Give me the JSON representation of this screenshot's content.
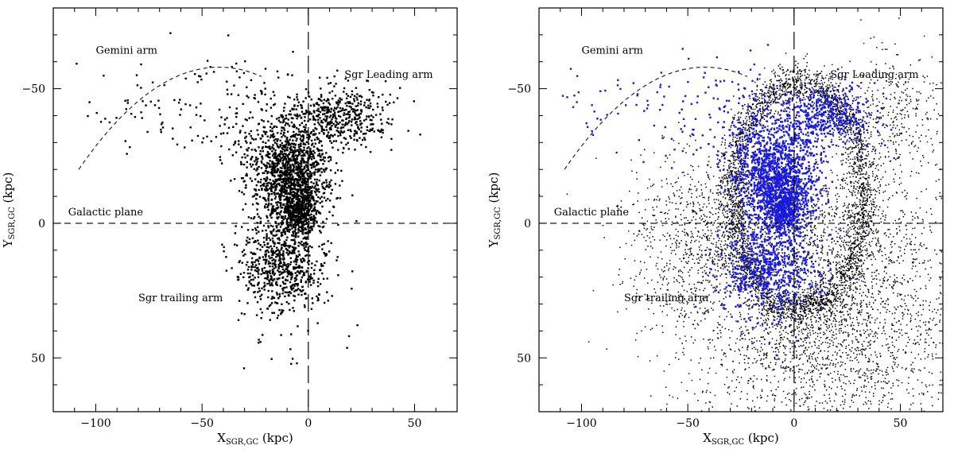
{
  "chart_data": [
    {
      "type": "scatter",
      "xlabel": "X",
      "xlabel_sub": "SGR,GC",
      "xlabel_unit": "(kpc)",
      "ylabel": "Y",
      "ylabel_sub": "SGR,GC",
      "ylabel_unit": "(kpc)",
      "xlim": [
        -120,
        70
      ],
      "ylim": [
        70,
        -80
      ],
      "x_ticks": [
        -100,
        -50,
        0,
        50
      ],
      "x_tick_labels": [
        "−100",
        "−50",
        "0",
        "50"
      ],
      "y_ticks": [
        -50,
        0,
        50
      ],
      "y_tick_labels": [
        "−50",
        "0",
        "50"
      ],
      "colors": {
        "observed": "#000000"
      },
      "reference_lines": {
        "horizontal_y": 0,
        "vertical_x": 0
      },
      "annotations": [
        {
          "text": "Gemini arm",
          "x": -100,
          "y": -63
        },
        {
          "text": "Sgr Leading arm",
          "x": 17,
          "y": -54
        },
        {
          "text": "Galactic plane",
          "x": -113,
          "y": -3
        },
        {
          "text": "Sgr trailing arm",
          "x": -80,
          "y": 29
        }
      ],
      "gemini_arc": {
        "x_from": -108,
        "x_to": -22,
        "vertex_x": -42,
        "vertex_y": -58,
        "y_at_from": -20
      },
      "series": [
        {
          "color": "#000000",
          "clusters": [
            {
              "cx": -8,
              "cy": -17,
              "sx": 9,
              "sy": 10,
              "n": 1400
            },
            {
              "cx": 15,
              "cy": -40,
              "sx": 12,
              "sy": 6,
              "n": 450
            },
            {
              "cx": -4,
              "cy": -4,
              "sx": 4,
              "sy": 4,
              "n": 350
            },
            {
              "cx": -12,
              "cy": 16,
              "sx": 11,
              "sy": 8,
              "n": 650
            },
            {
              "cx": -24,
              "cy": -36,
              "sx": 14,
              "sy": 12,
              "n": 180
            },
            {
              "cx": -72,
              "cy": -42,
              "sx": 20,
              "sy": 9,
              "n": 65
            },
            {
              "cx": -10,
              "cy": 33,
              "sx": 14,
              "sy": 13,
              "n": 45
            }
          ]
        }
      ]
    },
    {
      "type": "scatter",
      "xlabel": "X",
      "xlabel_sub": "SGR,GC",
      "xlabel_unit": "(kpc)",
      "ylabel": "Y",
      "ylabel_sub": "SGR,GC",
      "ylabel_unit": "(kpc)",
      "xlim": [
        -120,
        70
      ],
      "ylim": [
        70,
        -80
      ],
      "x_ticks": [
        -100,
        -50,
        0,
        50
      ],
      "x_tick_labels": [
        "−100",
        "−50",
        "0",
        "50"
      ],
      "y_ticks": [
        -50,
        0,
        50
      ],
      "y_tick_labels": [
        "−50",
        "0",
        "50"
      ],
      "colors": {
        "model": "#000000",
        "observed": "#1a1adc"
      },
      "reference_lines": {
        "horizontal_y": 0,
        "vertical_x": 0
      },
      "annotations": [
        {
          "text": "Gemini arm",
          "x": -100,
          "y": -63
        },
        {
          "text": "Sgr Leading arm",
          "x": 17,
          "y": -54
        },
        {
          "text": "Galactic plane",
          "x": -113,
          "y": -3
        },
        {
          "text": "Sgr trailing arm",
          "x": -80,
          "y": 29
        }
      ],
      "gemini_arc": {
        "x_from": -108,
        "x_to": -22,
        "vertex_x": -42,
        "vertex_y": -58,
        "y_at_from": -20
      },
      "series": [
        {
          "color": "#000000",
          "ring": {
            "cx": 2,
            "cy": -10,
            "rx": 31,
            "ry": 42,
            "width": 3.5,
            "n": 3200
          },
          "clusters": [
            {
              "cx": -18,
              "cy": -4,
              "sx": 28,
              "sy": 14,
              "n": 900
            },
            {
              "cx": 15,
              "cy": 45,
              "sx": 32,
              "sy": 18,
              "n": 1800
            },
            {
              "cx": 30,
              "cy": 10,
              "sx": 25,
              "sy": 18,
              "n": 900
            },
            {
              "cx": 45,
              "cy": -40,
              "sx": 14,
              "sy": 12,
              "n": 400
            },
            {
              "cx": -48,
              "cy": 14,
              "sx": 15,
              "sy": 15,
              "n": 500
            }
          ]
        },
        {
          "color": "#1a1adc",
          "clusters": [
            {
              "cx": -8,
              "cy": -17,
              "sx": 9,
              "sy": 10,
              "n": 1400
            },
            {
              "cx": 15,
              "cy": -40,
              "sx": 12,
              "sy": 6,
              "n": 450
            },
            {
              "cx": -4,
              "cy": -4,
              "sx": 4,
              "sy": 4,
              "n": 350
            },
            {
              "cx": -12,
              "cy": 16,
              "sx": 11,
              "sy": 8,
              "n": 650
            },
            {
              "cx": -24,
              "cy": -36,
              "sx": 14,
              "sy": 12,
              "n": 180
            },
            {
              "cx": -72,
              "cy": -42,
              "sx": 20,
              "sy": 9,
              "n": 65
            },
            {
              "cx": -10,
              "cy": 33,
              "sx": 14,
              "sy": 13,
              "n": 45
            }
          ]
        }
      ]
    }
  ]
}
